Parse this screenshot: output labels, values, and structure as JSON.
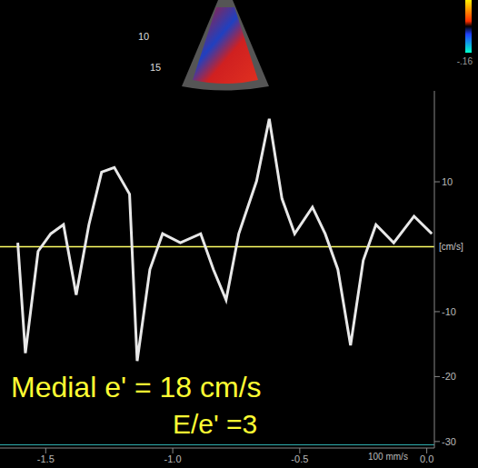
{
  "chart_data": {
    "type": "line",
    "y_label": "[cm/s]",
    "annotations": [
      "Medial e' = 18 cm/s",
      "E/e' =3"
    ],
    "depth_labels": [
      "10",
      "15"
    ],
    "color_bar_label": "-.16",
    "sweep_label": "100 mm/s",
    "color": "#e8e8e8",
    "grid": false,
    "zero_line": 0,
    "xlim": [
      -1.68,
      0.03
    ],
    "xticks": [
      -1.5,
      {
        "value": -1.0,
        "label": "-1.0"
      },
      -0.5,
      {
        "value": 0.0,
        "label": "0.0"
      }
    ],
    "ylim": [
      -31,
      24
    ],
    "yticks": [
      10,
      -10,
      -20,
      -30
    ],
    "x": [
      -1.61,
      -1.58,
      -1.53,
      -1.48,
      -1.43,
      -1.38,
      -1.33,
      -1.28,
      -1.23,
      -1.17,
      -1.14,
      -1.09,
      -1.04,
      -0.97,
      -0.89,
      -0.84,
      -0.79,
      -0.74,
      -0.67,
      -0.62,
      -0.57,
      -0.52,
      -0.45,
      -0.4,
      -0.35,
      -0.3,
      -0.25,
      -0.2,
      -0.13,
      -0.05,
      0.02
    ],
    "values": [
      0.6,
      -16.4,
      -0.7,
      2.0,
      3.4,
      -7.4,
      3.4,
      11.5,
      12.2,
      8.1,
      -17.6,
      -3.5,
      2.0,
      0.6,
      2.0,
      -3.5,
      -8.2,
      2.0,
      10.1,
      19.7,
      7.4,
      2.0,
      6.1,
      2.0,
      -3.5,
      -15.2,
      -2.1,
      3.4,
      0.6,
      4.7,
      2.0
    ]
  }
}
